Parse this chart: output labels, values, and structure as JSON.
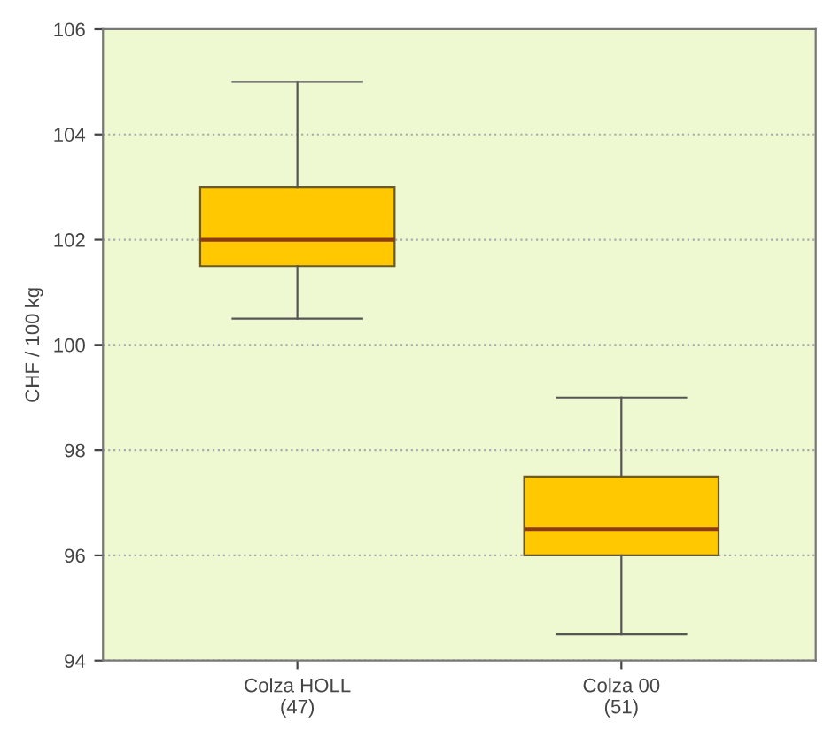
{
  "chart_data": {
    "type": "box",
    "ylabel": "CHF / 100 kg",
    "categories": [
      "Colza HOLL\n(47)",
      "Colza 00\n(51)"
    ],
    "boxes": [
      {
        "low": 100.5,
        "q1": 101.5,
        "median": 102,
        "q3": 103,
        "high": 105
      },
      {
        "low": 94.5,
        "q1": 96,
        "median": 96.5,
        "q3": 97.5,
        "high": 99
      }
    ],
    "color": "#ffc800",
    "ylim": [
      94,
      106
    ],
    "yticks": [
      94,
      96,
      98,
      100,
      102,
      104,
      106
    ],
    "grid": "y"
  }
}
